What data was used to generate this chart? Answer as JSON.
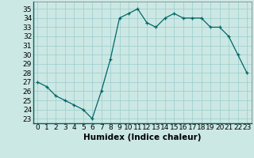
{
  "x": [
    0,
    1,
    2,
    3,
    4,
    5,
    6,
    7,
    8,
    9,
    10,
    11,
    12,
    13,
    14,
    15,
    16,
    17,
    18,
    19,
    20,
    21,
    22,
    23
  ],
  "y": [
    27,
    26.5,
    25.5,
    25,
    24.5,
    24,
    23,
    26,
    29.5,
    34,
    34.5,
    35,
    33.5,
    33,
    34,
    34.5,
    34,
    34,
    34,
    33,
    33,
    32,
    30,
    28
  ],
  "line_color": "#006666",
  "marker": "+",
  "marker_color": "#006666",
  "bg_color": "#cce8e4",
  "grid_color": "#99cccc",
  "xlabel": "Humidex (Indice chaleur)",
  "ylabel_ticks": [
    23,
    24,
    25,
    26,
    27,
    28,
    29,
    30,
    31,
    32,
    33,
    34,
    35
  ],
  "ylim": [
    22.5,
    35.8
  ],
  "xlim": [
    -0.5,
    23.5
  ],
  "tick_fontsize": 6.5,
  "label_fontsize": 7.5
}
